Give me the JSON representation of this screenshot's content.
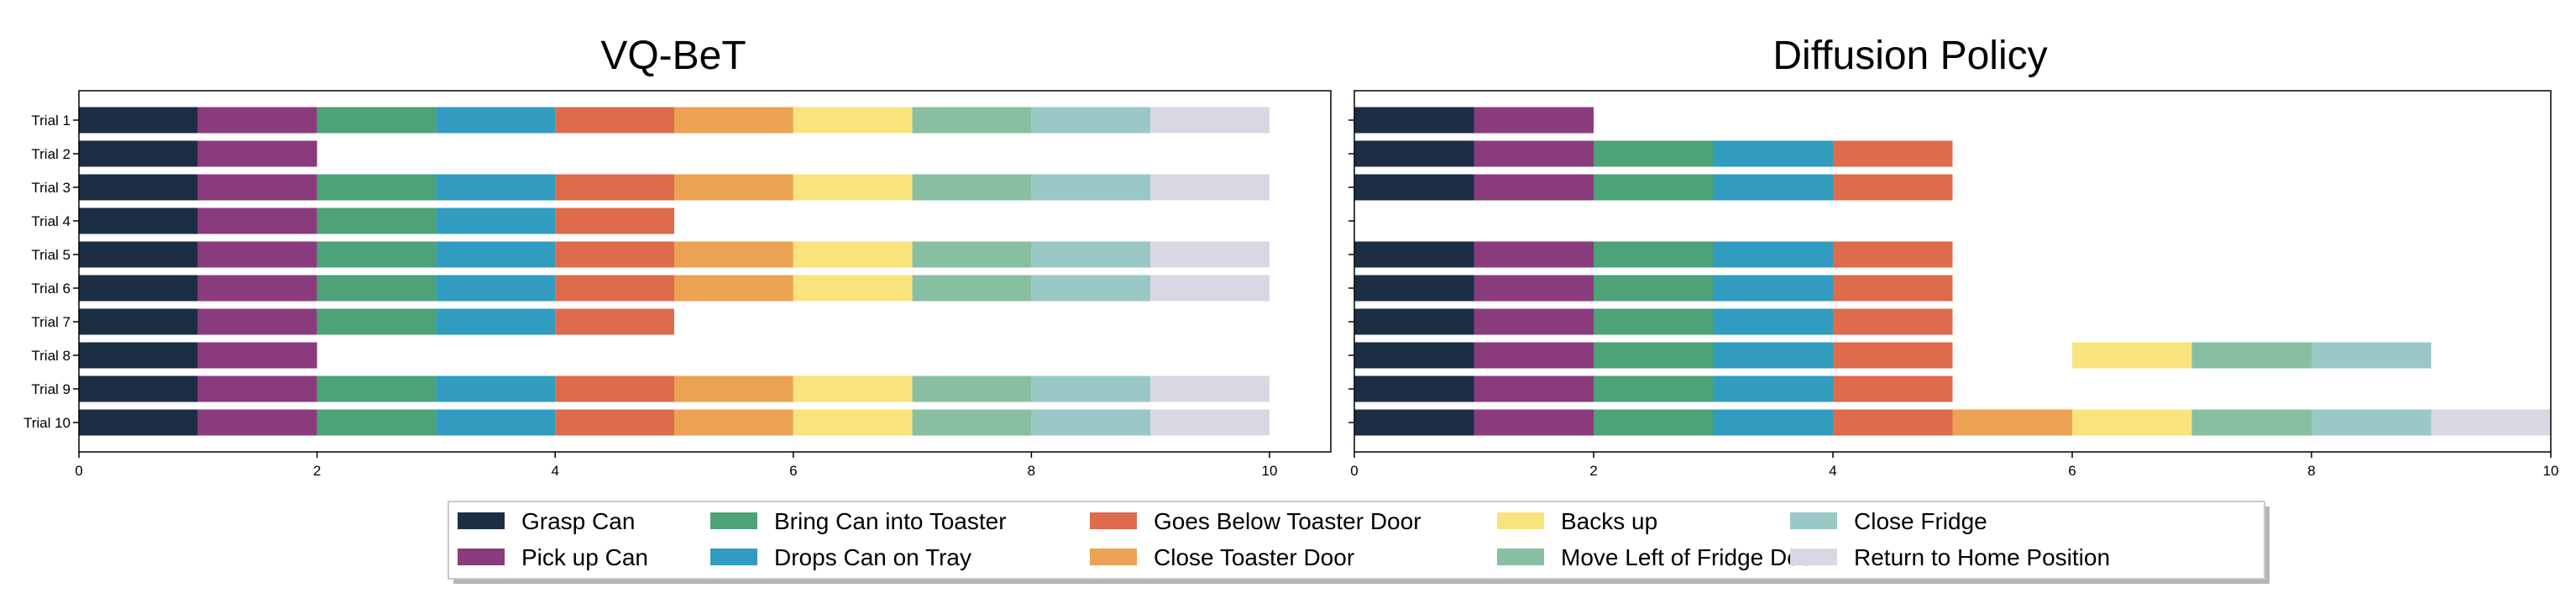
{
  "chart_data": [
    {
      "type": "bar",
      "orientation": "horizontal",
      "stacked": true,
      "title": "VQ-BeT",
      "xlim": [
        0,
        10
      ],
      "xticks": [
        "0",
        "2",
        "4",
        "6",
        "8",
        "10"
      ],
      "categories": [
        "Trial 1",
        "Trial 2",
        "Trial 3",
        "Trial 4",
        "Trial 5",
        "Trial 6",
        "Trial 7",
        "Trial 8",
        "Trial 9",
        "Trial 10"
      ],
      "trials": [
        [
          0,
          1,
          2,
          3,
          4,
          5,
          6,
          7,
          8,
          9
        ],
        [
          0,
          1
        ],
        [
          0,
          1,
          2,
          3,
          4,
          5,
          6,
          7,
          8,
          9
        ],
        [
          0,
          1,
          2,
          3,
          4
        ],
        [
          0,
          1,
          2,
          3,
          4,
          5,
          6,
          7,
          8,
          9
        ],
        [
          0,
          1,
          2,
          3,
          4,
          5,
          6,
          7,
          8,
          9
        ],
        [
          0,
          1,
          2,
          3,
          4
        ],
        [
          0,
          1
        ],
        [
          0,
          1,
          2,
          3,
          4,
          5,
          6,
          7,
          8,
          9
        ],
        [
          0,
          1,
          2,
          3,
          4,
          5,
          6,
          7,
          8,
          9
        ]
      ]
    },
    {
      "type": "bar",
      "orientation": "horizontal",
      "stacked": true,
      "title": "Diffusion Policy",
      "xlim": [
        0,
        10
      ],
      "xticks": [
        "0",
        "2",
        "4",
        "6",
        "8",
        "10"
      ],
      "categories": [
        "Trial 1",
        "Trial 2",
        "Trial 3",
        "Trial 4",
        "Trial 5",
        "Trial 6",
        "Trial 7",
        "Trial 8",
        "Trial 9",
        "Trial 10"
      ],
      "trials": [
        [
          0,
          1
        ],
        [
          0,
          1,
          2,
          3,
          4
        ],
        [
          0,
          1,
          2,
          3,
          4
        ],
        [],
        [
          0,
          1,
          2,
          3,
          4
        ],
        [
          0,
          1,
          2,
          3,
          4
        ],
        [
          0,
          1,
          2,
          3,
          4
        ],
        [
          0,
          1,
          2,
          3,
          4,
          6,
          7,
          8
        ],
        [
          0,
          1,
          2,
          3,
          4
        ],
        [
          0,
          1,
          2,
          3,
          4,
          5,
          6,
          7,
          8,
          9
        ]
      ]
    }
  ],
  "legend": [
    {
      "label": "Grasp Can",
      "color": "#1b2e44"
    },
    {
      "label": "Pick up Can",
      "color": "#8a3b7d"
    },
    {
      "label": "Bring Can into Toaster",
      "color": "#4ea277"
    },
    {
      "label": "Drops Can on Tray",
      "color": "#319cbf"
    },
    {
      "label": "Goes Below Toaster Door",
      "color": "#dd6b4c"
    },
    {
      "label": "Close Toaster Door",
      "color": "#eba253"
    },
    {
      "label": "Backs up",
      "color": "#f8e37c"
    },
    {
      "label": "Move Left of Fridge Door",
      "color": "#88bfa2"
    },
    {
      "label": "Close Fridge",
      "color": "#99c8c7"
    },
    {
      "label": "Return to Home Position",
      "color": "#dad7e4"
    }
  ]
}
